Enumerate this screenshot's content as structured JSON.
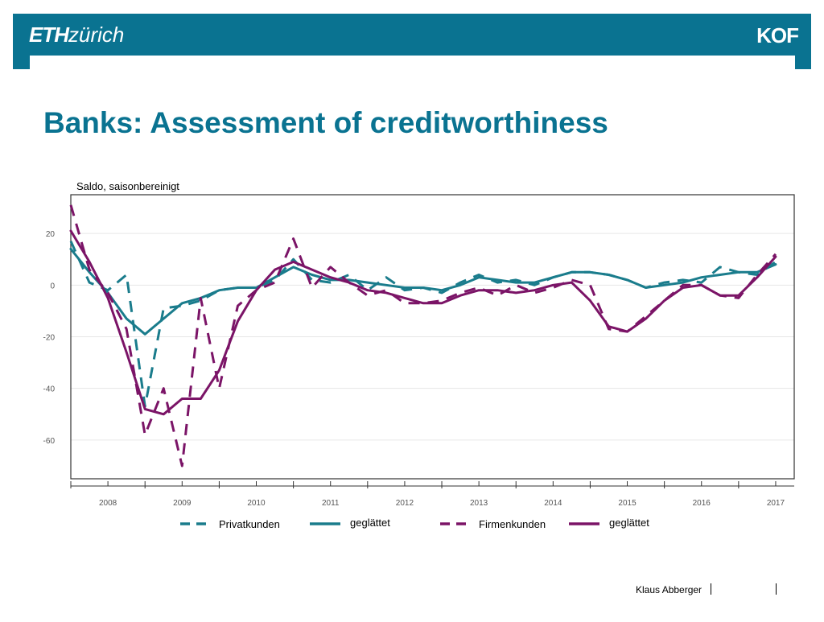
{
  "header": {
    "logo_eth_bold": "ETH",
    "logo_eth_rest": "zürich",
    "logo_right": "KOF"
  },
  "slide": {
    "title": "Banks: Assessment of creditworthiness"
  },
  "footer": {
    "author": "Klaus Abberger"
  },
  "colors": {
    "brand": "#0a7391",
    "private": "#1a7c8c",
    "corporate": "#7b1467"
  },
  "chart_data": {
    "type": "line",
    "unit_label": "Saldo, saisonbereinigt",
    "x_tick_labels": [
      "2008",
      "2009",
      "2010",
      "2011",
      "2012",
      "2013",
      "2014",
      "2015",
      "2016",
      "2017"
    ],
    "xlim": [
      2007.5,
      2017.25
    ],
    "ylim": [
      -75,
      35
    ],
    "y_ticks": [
      20,
      0,
      -20,
      -40,
      -60
    ],
    "y_tick_labels": [
      "20",
      "0",
      "-20",
      "-40",
      "-60"
    ],
    "grid": true,
    "legend": "bottom",
    "series": [
      {
        "name": "Privatkunden",
        "style": "dashed",
        "color": "#1a7c8c",
        "x": [
          2007.5,
          2007.75,
          2008.0,
          2008.25,
          2008.5,
          2008.75,
          2009.0,
          2009.25,
          2009.5,
          2009.75,
          2010.0,
          2010.25,
          2010.5,
          2010.75,
          2011.0,
          2011.25,
          2011.5,
          2011.75,
          2012.0,
          2012.25,
          2012.5,
          2012.75,
          2013.0,
          2013.25,
          2013.5,
          2013.75,
          2014.0,
          2014.25,
          2014.5,
          2014.75,
          2015.0,
          2015.25,
          2015.5,
          2015.75,
          2016.0,
          2016.25,
          2016.5,
          2016.75,
          2017.0
        ],
        "y": [
          17,
          1,
          -2,
          4,
          -47,
          -9,
          -8,
          -6,
          -2,
          -1,
          -1,
          2,
          10,
          2,
          1,
          4,
          -2,
          3,
          -2,
          -1,
          -3,
          1,
          4,
          1,
          2,
          0,
          3,
          5,
          5,
          4,
          2,
          -1,
          1,
          2,
          1,
          7,
          5,
          4,
          9
        ]
      },
      {
        "name": "geglättet",
        "style": "solid",
        "color": "#1a7c8c",
        "x": [
          2007.5,
          2007.75,
          2008.0,
          2008.25,
          2008.5,
          2008.75,
          2009.0,
          2009.25,
          2009.5,
          2009.75,
          2010.0,
          2010.25,
          2010.5,
          2010.75,
          2011.0,
          2011.25,
          2011.5,
          2011.75,
          2012.0,
          2012.25,
          2012.5,
          2012.75,
          2013.0,
          2013.25,
          2013.5,
          2013.75,
          2014.0,
          2014.25,
          2014.5,
          2014.75,
          2015.0,
          2015.25,
          2015.5,
          2015.75,
          2016.0,
          2016.25,
          2016.5,
          2016.75,
          2017.0
        ],
        "y": [
          14,
          5,
          -3,
          -13,
          -19,
          -13,
          -7,
          -5,
          -2,
          -1,
          -1,
          3,
          7,
          4,
          2,
          2,
          1,
          0,
          -1,
          -1,
          -2,
          0,
          3,
          2,
          1,
          1,
          3,
          5,
          5,
          4,
          2,
          -1,
          0,
          1,
          3,
          4,
          5,
          5,
          8
        ]
      },
      {
        "name": "Firmenkunden",
        "style": "dashed",
        "color": "#7b1467",
        "x": [
          2007.5,
          2007.75,
          2008.0,
          2008.25,
          2008.5,
          2008.75,
          2009.0,
          2009.25,
          2009.5,
          2009.75,
          2010.0,
          2010.25,
          2010.5,
          2010.75,
          2011.0,
          2011.25,
          2011.5,
          2011.75,
          2012.0,
          2012.25,
          2012.5,
          2012.75,
          2013.0,
          2013.25,
          2013.5,
          2013.75,
          2014.0,
          2014.25,
          2014.5,
          2014.75,
          2015.0,
          2015.25,
          2015.5,
          2015.75,
          2016.0,
          2016.25,
          2016.5,
          2016.75,
          2017.0
        ],
        "y": [
          31,
          6,
          -3,
          -17,
          -58,
          -40,
          -70,
          -5,
          -40,
          -8,
          -2,
          1,
          18,
          -1,
          7,
          1,
          -4,
          -2,
          -7,
          -7,
          -6,
          -3,
          -1,
          -4,
          0,
          -3,
          -1,
          2,
          0,
          -17,
          -18,
          -12,
          -6,
          0,
          0,
          -4,
          -5,
          4,
          12
        ]
      },
      {
        "name": "geglättet",
        "style": "solid",
        "color": "#7b1467",
        "x": [
          2007.5,
          2007.75,
          2008.0,
          2008.25,
          2008.5,
          2008.75,
          2009.0,
          2009.25,
          2009.5,
          2009.75,
          2010.0,
          2010.25,
          2010.5,
          2010.75,
          2011.0,
          2011.25,
          2011.5,
          2011.75,
          2012.0,
          2012.25,
          2012.5,
          2012.75,
          2013.0,
          2013.25,
          2013.5,
          2013.75,
          2014.0,
          2014.25,
          2014.5,
          2014.75,
          2015.0,
          2015.25,
          2015.5,
          2015.75,
          2016.0,
          2016.25,
          2016.5,
          2016.75,
          2017.0
        ],
        "y": [
          21,
          9,
          -5,
          -26,
          -48,
          -50,
          -44,
          -44,
          -33,
          -14,
          -2,
          6,
          9,
          6,
          3,
          1,
          -2,
          -3,
          -5,
          -7,
          -7,
          -4,
          -2,
          -2,
          -3,
          -2,
          0,
          1,
          -6,
          -16,
          -18,
          -13,
          -6,
          -1,
          0,
          -4,
          -4,
          3,
          11
        ]
      }
    ]
  }
}
